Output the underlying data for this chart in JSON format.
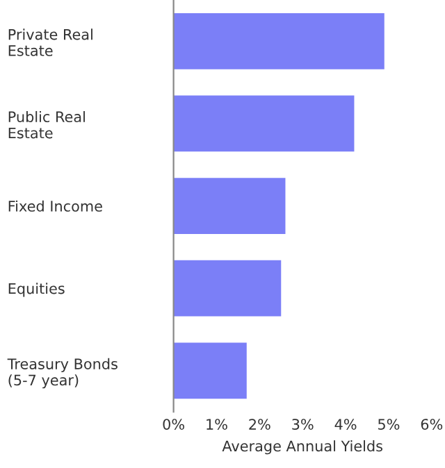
{
  "chart_data": {
    "type": "bar",
    "orientation": "horizontal",
    "categories": [
      "Private Real\nEstate",
      "Public Real\nEstate",
      "Fixed Income",
      "Equities",
      "Treasury Bonds\n(5-7 year)"
    ],
    "values": [
      4.9,
      4.2,
      2.6,
      2.5,
      1.7
    ],
    "color": "#7b7ff7",
    "xlabel": "Average Annual Yields",
    "xlim": [
      0,
      6
    ],
    "xticks": [
      {
        "value": 0,
        "label": "0%"
      },
      {
        "value": 1,
        "label": "1%"
      },
      {
        "value": 2,
        "label": "2%"
      },
      {
        "value": 3,
        "label": "3%"
      },
      {
        "value": 4,
        "label": "4%"
      },
      {
        "value": 5,
        "label": "5%"
      },
      {
        "value": 6,
        "label": "6%"
      }
    ],
    "grid": false
  }
}
